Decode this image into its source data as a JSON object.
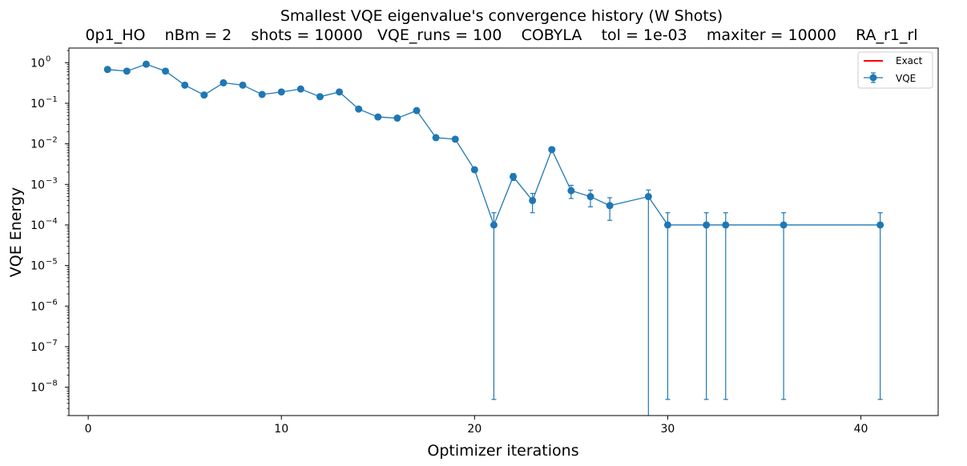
{
  "chart_data": {
    "type": "line",
    "title": "Smallest VQE eigenvalue's convergence history (W Shots)",
    "subtitle": "0p1_HO    nBm = 2    shots = 10000   VQE_runs = 100    COBYLA    tol = 1e-03    maxiter = 10000    RA_r1_rl",
    "xlabel": "Optimizer iterations",
    "ylabel": "VQE Energy",
    "yscale": "log",
    "xlim": [
      -1,
      44
    ],
    "ylim": [
      2e-09,
      2.3
    ],
    "x_ticks": [
      0,
      10,
      20,
      30,
      40
    ],
    "x_tick_labels": [
      "0",
      "10",
      "20",
      "30",
      "40"
    ],
    "y_ticks": [
      1e-08,
      1e-07,
      1e-06,
      1e-05,
      0.0001,
      0.001,
      0.01,
      0.1,
      1
    ],
    "y_tick_base": "10",
    "y_tick_exponents": [
      "−8",
      "−7",
      "−6",
      "−5",
      "−4",
      "−3",
      "−2",
      "−1",
      "0"
    ],
    "grid": false,
    "legend_position": "top-right",
    "series": [
      {
        "name": "Exact",
        "color": "#ff0000",
        "style": "line",
        "x": [],
        "values": []
      },
      {
        "name": "VQE",
        "color": "#1f77b4",
        "style": "line-markers-errorbars",
        "x": [
          1,
          2,
          3,
          4,
          5,
          6,
          7,
          8,
          9,
          10,
          11,
          12,
          13,
          14,
          15,
          16,
          17,
          18,
          19,
          20,
          21,
          22,
          23,
          24,
          25,
          26,
          27,
          29,
          30,
          32,
          33,
          36,
          41
        ],
        "values": [
          0.68,
          0.62,
          0.92,
          0.62,
          0.28,
          0.16,
          0.32,
          0.28,
          0.165,
          0.19,
          0.225,
          0.145,
          0.19,
          0.072,
          0.046,
          0.043,
          0.066,
          0.0142,
          0.013,
          0.0023,
          0.0001,
          0.00155,
          0.0004,
          0.0072,
          0.0007,
          0.0005,
          0.0003,
          0.0005,
          0.0001,
          0.0001,
          0.0001,
          0.0001,
          0.0001
        ],
        "err_low": [
          null,
          null,
          null,
          null,
          null,
          null,
          null,
          null,
          null,
          null,
          null,
          null,
          null,
          null,
          null,
          null,
          null,
          null,
          null,
          null,
          5e-09,
          0.00125,
          0.0002,
          null,
          0.00045,
          0.00028,
          0.00013,
          1e-10,
          5e-09,
          5e-09,
          5e-09,
          5e-09,
          5e-09
        ],
        "err_high": [
          null,
          null,
          null,
          null,
          null,
          null,
          null,
          null,
          null,
          null,
          null,
          null,
          null,
          null,
          null,
          null,
          null,
          null,
          null,
          null,
          0.0002,
          0.00185,
          0.0006,
          null,
          0.00095,
          0.00072,
          0.00047,
          0.00073,
          0.0002,
          0.0002,
          0.0002,
          0.0002,
          0.0002
        ]
      }
    ]
  }
}
